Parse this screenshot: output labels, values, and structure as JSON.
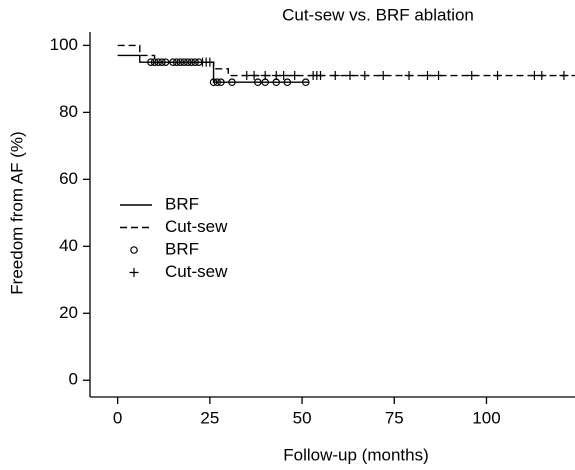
{
  "chart_data": {
    "type": "survival",
    "title": "Cut-sew vs. BRF ablation",
    "xlabel": "Follow-up (months)",
    "ylabel": "Freedom from AF (%)",
    "xlim": [
      -7.5,
      124
    ],
    "ylim": [
      -5,
      104
    ],
    "xticks": [
      0,
      25,
      50,
      75,
      100
    ],
    "yticks": [
      0,
      20,
      40,
      60,
      80,
      100
    ],
    "legend": "left",
    "series": [
      {
        "name": "BRF",
        "type": "step",
        "dash": false,
        "color": "#000000",
        "x": [
          0,
          6,
          26,
          52
        ],
        "values": [
          97,
          95,
          89,
          89
        ]
      },
      {
        "name": "Cut-sew",
        "type": "step",
        "dash": true,
        "color": "#000000",
        "x": [
          0,
          6,
          10,
          26,
          30,
          124
        ],
        "values": [
          100,
          97,
          95,
          93,
          91,
          91
        ]
      },
      {
        "name": "BRF",
        "type": "scatter",
        "marker": "circle",
        "color": "#000000",
        "x": [
          9,
          10,
          11,
          12,
          13,
          15,
          16,
          17,
          18,
          19,
          20,
          21,
          22,
          26,
          27,
          28,
          31,
          38,
          40,
          43,
          46,
          51
        ],
        "values": [
          95,
          95,
          95,
          95,
          95,
          95,
          95,
          95,
          95,
          95,
          95,
          95,
          95,
          89,
          89,
          89,
          89,
          89,
          89,
          89,
          89,
          89
        ]
      },
      {
        "name": "Cut-sew",
        "type": "scatter",
        "marker": "plus",
        "color": "#000000",
        "x": [
          23,
          24,
          25,
          35,
          37,
          40,
          43,
          45,
          48,
          53,
          54,
          55,
          59,
          63,
          67,
          72,
          79,
          84,
          87,
          96,
          103,
          113,
          115,
          121
        ],
        "values": [
          95,
          95,
          95,
          91,
          91,
          91,
          91,
          91,
          91,
          91,
          91,
          91,
          91,
          91,
          91,
          91,
          91,
          91,
          91,
          91,
          91,
          91,
          91,
          91
        ]
      }
    ]
  }
}
